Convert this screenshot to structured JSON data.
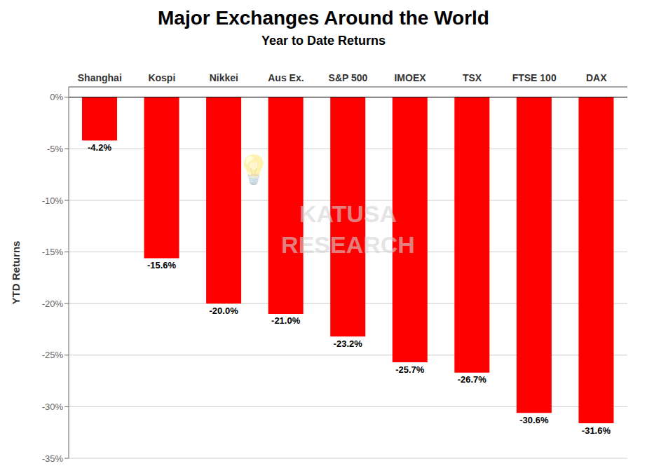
{
  "chart_data": {
    "type": "bar",
    "title": "Major Exchanges Around the World",
    "subtitle": "Year to Date Returns",
    "y_label": "YTD Returns",
    "categories": [
      "Shanghai",
      "Kospi",
      "Nikkei",
      "Aus Ex.",
      "S&P 500",
      "IMOEX",
      "TSX",
      "FTSE 100",
      "DAX"
    ],
    "values": [
      -4.2,
      -15.6,
      -20.0,
      -21.0,
      -23.2,
      -25.7,
      -26.7,
      -30.6,
      -31.6
    ],
    "value_labels": [
      "-4.2%",
      "-15.6%",
      "-20.0%",
      "-21.0%",
      "-23.2%",
      "-25.7%",
      "-26.7%",
      "-30.6%",
      "-31.6%"
    ],
    "data_labels": true,
    "color": "#ff0000",
    "ylim": [
      -35,
      1
    ],
    "yticks": [
      {
        "value": 0,
        "label": "0%"
      },
      {
        "value": -5,
        "label": "-5%"
      },
      {
        "value": -10,
        "label": "-10%"
      },
      {
        "value": -15,
        "label": "-15%"
      },
      {
        "value": -20,
        "label": "-20%"
      },
      {
        "value": -25,
        "label": "-25%"
      },
      {
        "value": -30,
        "label": "-30%"
      },
      {
        "value": -35,
        "label": "-35%"
      }
    ],
    "grid": true,
    "annotations": [
      "KATUSA\nRESEARCH",
      "💡"
    ]
  }
}
